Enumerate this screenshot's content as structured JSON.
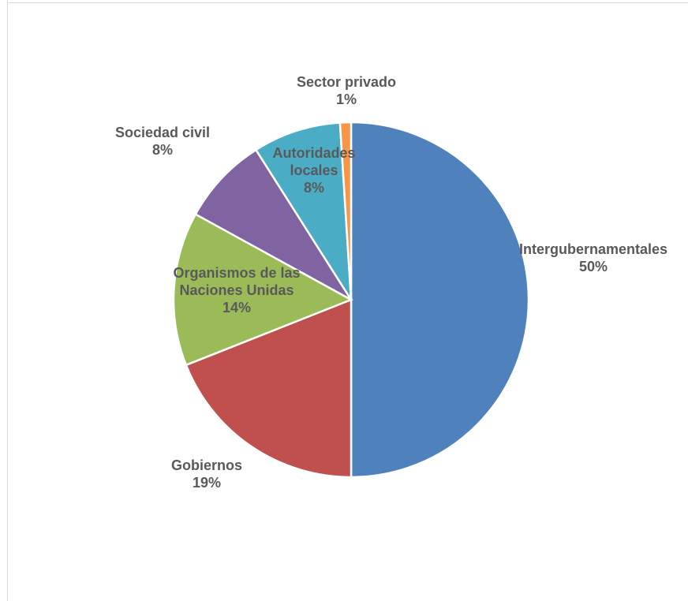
{
  "chart_data": {
    "type": "pie",
    "title": "",
    "slices": [
      {
        "name": "Intergubernamentales",
        "label_lines": [
          "Intergubernamentales"
        ],
        "value": 50,
        "pct_label": "50%",
        "color": "#4f81bd"
      },
      {
        "name": "Gobiernos",
        "label_lines": [
          "Gobiernos"
        ],
        "value": 19,
        "pct_label": "19%",
        "color": "#c0504d"
      },
      {
        "name": "Organismos de las Naciones Unidas",
        "label_lines": [
          "Organismos de las",
          "Naciones Unidas"
        ],
        "value": 14,
        "pct_label": "14%",
        "color": "#9bbb59"
      },
      {
        "name": "Sociedad civil",
        "label_lines": [
          "Sociedad civil"
        ],
        "value": 8,
        "pct_label": "8%",
        "color": "#8064a2"
      },
      {
        "name": "Autoridades locales",
        "label_lines": [
          "Autoridades",
          "locales"
        ],
        "value": 8,
        "pct_label": "8%",
        "color": "#4bacc6"
      },
      {
        "name": "Sector privado",
        "label_lines": [
          "Sector privado"
        ],
        "value": 1,
        "pct_label": "1%",
        "color": "#f79646"
      }
    ],
    "legend": "none",
    "clockwise": true,
    "start_angle": "12 o'clock"
  }
}
